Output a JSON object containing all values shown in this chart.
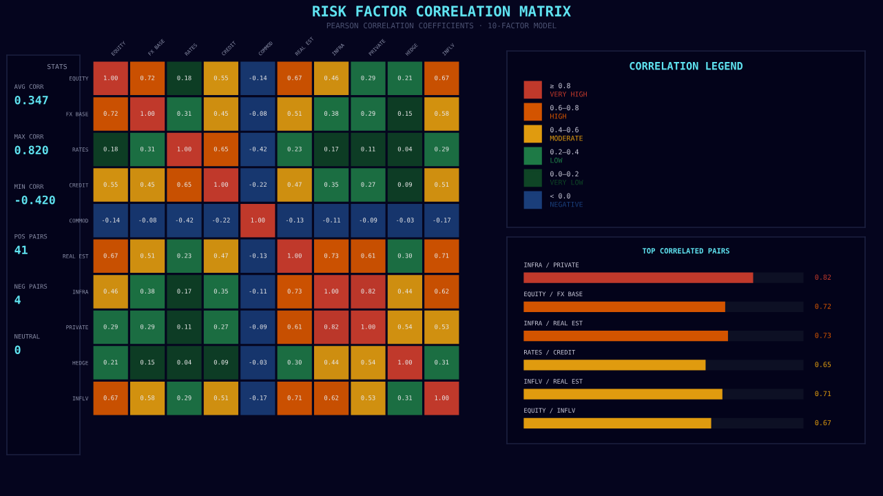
{
  "chart_data": [
    {
      "type": "other",
      "title": "STATS",
      "categories": [
        "AVG CORR",
        "MAX CORR",
        "MIN CORR",
        "POS PAIRS",
        "NEG PAIRS",
        "NEUTRAL"
      ],
      "value_labels": [
        "0.347",
        "0.820",
        "-0.420",
        "41",
        "4",
        "0"
      ]
    },
    {
      "type": "heatmap",
      "title": "RISK FACTOR CORRELATION MATRIX",
      "subtitle": "PEARSON CORRELATION COEFFICIENTS · 10-FACTOR MODEL",
      "categories": [
        "EQUITY",
        "FX BASE",
        "RATES",
        "CREDIT",
        "COMMOD",
        "REAL EST",
        "INFRA",
        "PRIVATE",
        "HEDGE",
        "INFLV"
      ],
      "y_categories": [
        "EQUITY",
        "FX BASE",
        "RATES",
        "CREDIT",
        "COMMOD",
        "REAL EST",
        "INFRA",
        "PRIVATE",
        "HEDGE",
        "INFLV"
      ],
      "cells": [
        [
          1.0,
          0.72,
          0.18,
          0.55,
          -0.14,
          0.67,
          0.46,
          0.29,
          0.21,
          0.67
        ],
        [
          0.72,
          1.0,
          0.31,
          0.45,
          -0.08,
          0.51,
          0.38,
          0.29,
          0.15,
          0.58
        ],
        [
          0.18,
          0.31,
          1.0,
          0.65,
          -0.42,
          0.23,
          0.17,
          0.11,
          0.04,
          0.29
        ],
        [
          0.55,
          0.45,
          0.65,
          1.0,
          -0.22,
          0.47,
          0.35,
          0.27,
          0.09,
          0.51
        ],
        [
          -0.14,
          -0.08,
          -0.42,
          -0.22,
          1.0,
          -0.13,
          -0.11,
          -0.09,
          -0.03,
          -0.17
        ],
        [
          0.67,
          0.51,
          0.23,
          0.47,
          -0.13,
          1.0,
          0.73,
          0.61,
          0.3,
          0.71
        ],
        [
          0.46,
          0.38,
          0.17,
          0.35,
          -0.11,
          0.73,
          1.0,
          0.82,
          0.44,
          0.62
        ],
        [
          0.29,
          0.29,
          0.11,
          0.27,
          -0.09,
          0.61,
          0.82,
          1.0,
          0.54,
          0.53
        ],
        [
          0.21,
          0.15,
          0.04,
          0.09,
          -0.03,
          0.3,
          0.44,
          0.54,
          1.0,
          0.31
        ],
        [
          0.67,
          0.58,
          0.29,
          0.51,
          -0.17,
          0.71,
          0.62,
          0.53,
          0.31,
          1.0
        ]
      ],
      "cell_labels": [
        [
          "1.00",
          "0.72",
          "0.18",
          "0.55",
          "-0.14",
          "0.67",
          "0.46",
          "0.29",
          "0.21",
          "0.67"
        ],
        [
          "0.72",
          "1.00",
          "0.31",
          "0.45",
          "-0.08",
          "0.51",
          "0.38",
          "0.29",
          "0.15",
          "0.58"
        ],
        [
          "0.18",
          "0.31",
          "1.00",
          "0.65",
          "-0.42",
          "0.23",
          "0.17",
          "0.11",
          "0.04",
          "0.29"
        ],
        [
          "0.55",
          "0.45",
          "0.65",
          "1.00",
          "-0.22",
          "0.47",
          "0.35",
          "0.27",
          "0.09",
          "0.51"
        ],
        [
          "-0.14",
          "-0.08",
          "-0.42",
          "-0.22",
          "1.00",
          "-0.13",
          "-0.11",
          "-0.09",
          "-0.03",
          "-0.17"
        ],
        [
          "0.67",
          "0.51",
          "0.23",
          "0.47",
          "-0.13",
          "1.00",
          "0.73",
          "0.61",
          "0.30",
          "0.71"
        ],
        [
          "0.46",
          "0.38",
          "0.17",
          "0.35",
          "-0.11",
          "0.73",
          "1.00",
          "0.82",
          "0.44",
          "0.62"
        ],
        [
          "0.29",
          "0.29",
          "0.11",
          "0.27",
          "-0.09",
          "0.61",
          "0.82",
          "1.00",
          "0.54",
          "0.53"
        ],
        [
          "0.21",
          "0.15",
          "0.04",
          "0.09",
          "-0.03",
          "0.30",
          "0.44",
          "0.54",
          "1.00",
          "0.31"
        ],
        [
          "0.67",
          "0.58",
          "0.29",
          "0.51",
          "-0.17",
          "0.71",
          "0.62",
          "0.53",
          "0.31",
          "1.00"
        ]
      ],
      "colors": [
        [
          "#c0392b",
          "#d35400",
          "#0f4526",
          "#e09b0f",
          "#1a3e7a",
          "#d35400",
          "#e09b0f",
          "#1e7a46",
          "#1e7a46",
          "#d35400"
        ],
        [
          "#d35400",
          "#c0392b",
          "#1e7a46",
          "#e09b0f",
          "#1a3e7a",
          "#e09b0f",
          "#1e7a46",
          "#1e7a46",
          "#0f4526",
          "#e09b0f"
        ],
        [
          "#0f4526",
          "#1e7a46",
          "#c0392b",
          "#d35400",
          "#1a3e7a",
          "#1e7a46",
          "#0f4526",
          "#0f4526",
          "#0f4526",
          "#1e7a46"
        ],
        [
          "#e09b0f",
          "#e09b0f",
          "#d35400",
          "#c0392b",
          "#1a3e7a",
          "#e09b0f",
          "#1e7a46",
          "#1e7a46",
          "#0f4526",
          "#e09b0f"
        ],
        [
          "#1a3e7a",
          "#1a3e7a",
          "#1a3e7a",
          "#1a3e7a",
          "#c0392b",
          "#1a3e7a",
          "#1a3e7a",
          "#1a3e7a",
          "#1a3e7a",
          "#1a3e7a"
        ],
        [
          "#d35400",
          "#e09b0f",
          "#1e7a46",
          "#e09b0f",
          "#1a3e7a",
          "#c0392b",
          "#d35400",
          "#d35400",
          "#1e7a46",
          "#d35400"
        ],
        [
          "#e09b0f",
          "#1e7a46",
          "#0f4526",
          "#1e7a46",
          "#1a3e7a",
          "#d35400",
          "#c0392b",
          "#c0392b",
          "#e09b0f",
          "#d35400"
        ],
        [
          "#1e7a46",
          "#1e7a46",
          "#0f4526",
          "#1e7a46",
          "#1a3e7a",
          "#d35400",
          "#c0392b",
          "#c0392b",
          "#e09b0f",
          "#e09b0f"
        ],
        [
          "#1e7a46",
          "#0f4526",
          "#0f4526",
          "#0f4526",
          "#1a3e7a",
          "#1e7a46",
          "#e09b0f",
          "#e09b0f",
          "#c0392b",
          "#1e7a46"
        ],
        [
          "#d35400",
          "#e09b0f",
          "#1e7a46",
          "#e09b0f",
          "#1a3e7a",
          "#d35400",
          "#d35400",
          "#e09b0f",
          "#1e7a46",
          "#c0392b"
        ]
      ]
    },
    {
      "type": "other",
      "title": "CORRELATION LEGEND",
      "categories": [
        "≥ 0.8",
        "0.6–0.8",
        "0.4–0.6",
        "0.2–0.4",
        "0.0–0.2",
        "< 0.0"
      ],
      "annotations": [
        "VERY HIGH",
        "HIGH",
        "MODERATE",
        "LOW",
        "VERY LOW",
        "NEGATIVE"
      ],
      "colors": [
        "#c0392b",
        "#d35400",
        "#e09b0f",
        "#1e7a46",
        "#0f4526",
        "#1a3e7a"
      ]
    },
    {
      "type": "bar",
      "orientation": "horizontal",
      "title": "TOP CORRELATED PAIRS",
      "categories": [
        "INFRA / PRIVATE",
        "EQUITY / FX BASE",
        "INFRA / REAL EST",
        "RATES / CREDIT",
        "INFLV / REAL EST",
        "EQUITY / INFLV"
      ],
      "values": [
        0.82,
        0.72,
        0.73,
        0.65,
        0.71,
        0.67
      ],
      "colors": [
        "#c0392b",
        "#d35400",
        "#d35400",
        "#e09b0f",
        "#e09b0f",
        "#e09b0f"
      ],
      "xlim": [
        0,
        1
      ],
      "tick_labels": false,
      "data_labels": true
    }
  ]
}
